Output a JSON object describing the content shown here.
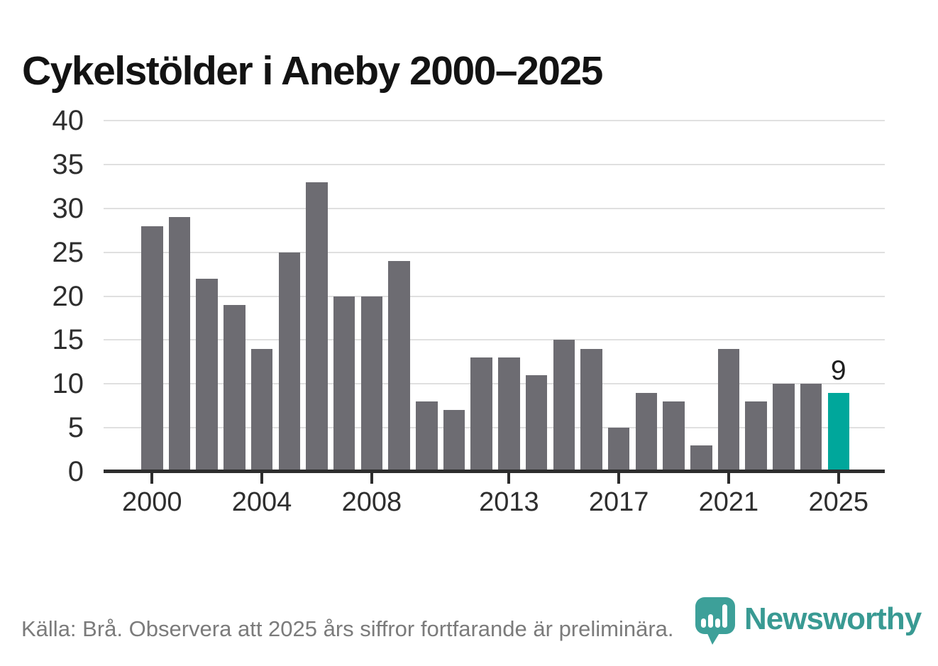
{
  "page": {
    "title": "Cykelstölder i Aneby 2000–2025"
  },
  "chart_data": {
    "type": "bar",
    "title": "Cykelstölder i Aneby 2000–2025",
    "categories": [
      "2000",
      "2001",
      "2002",
      "2003",
      "2004",
      "2005",
      "2006",
      "2007",
      "2008",
      "2009",
      "2010",
      "2011",
      "2012",
      "2013",
      "2014",
      "2015",
      "2016",
      "2017",
      "2018",
      "2019",
      "2020",
      "2021",
      "2022",
      "2023",
      "2024",
      "2025"
    ],
    "values": [
      28,
      29,
      22,
      19,
      14,
      25,
      33,
      20,
      20,
      24,
      8,
      7,
      13,
      13,
      11,
      15,
      14,
      5,
      9,
      8,
      3,
      14,
      8,
      10,
      10,
      9
    ],
    "xlabel": "",
    "ylabel": "",
    "ylim": [
      0,
      40
    ],
    "yticks": [
      0,
      5,
      10,
      15,
      20,
      25,
      30,
      35,
      40
    ],
    "xtick_labels": [
      "2000",
      "2004",
      "2008",
      "2013",
      "2017",
      "2021",
      "2025"
    ],
    "xtick_indices": [
      0,
      4,
      8,
      13,
      17,
      21,
      25
    ],
    "grid": true,
    "legend": false,
    "bar_color": "#6d6c72",
    "highlight": {
      "index": 25,
      "label": "9",
      "color": "#00a79b"
    },
    "axis_color": "#2d2d2d",
    "grid_color": "#e0e0e0"
  },
  "footer": {
    "source_text": "Källa: Brå. Observera att 2025 års siffror fortfarande är preliminära."
  },
  "logo": {
    "text": "Newsworthy",
    "color": "#399a93",
    "mark": "newsworthy-bubble-chart-icon"
  }
}
